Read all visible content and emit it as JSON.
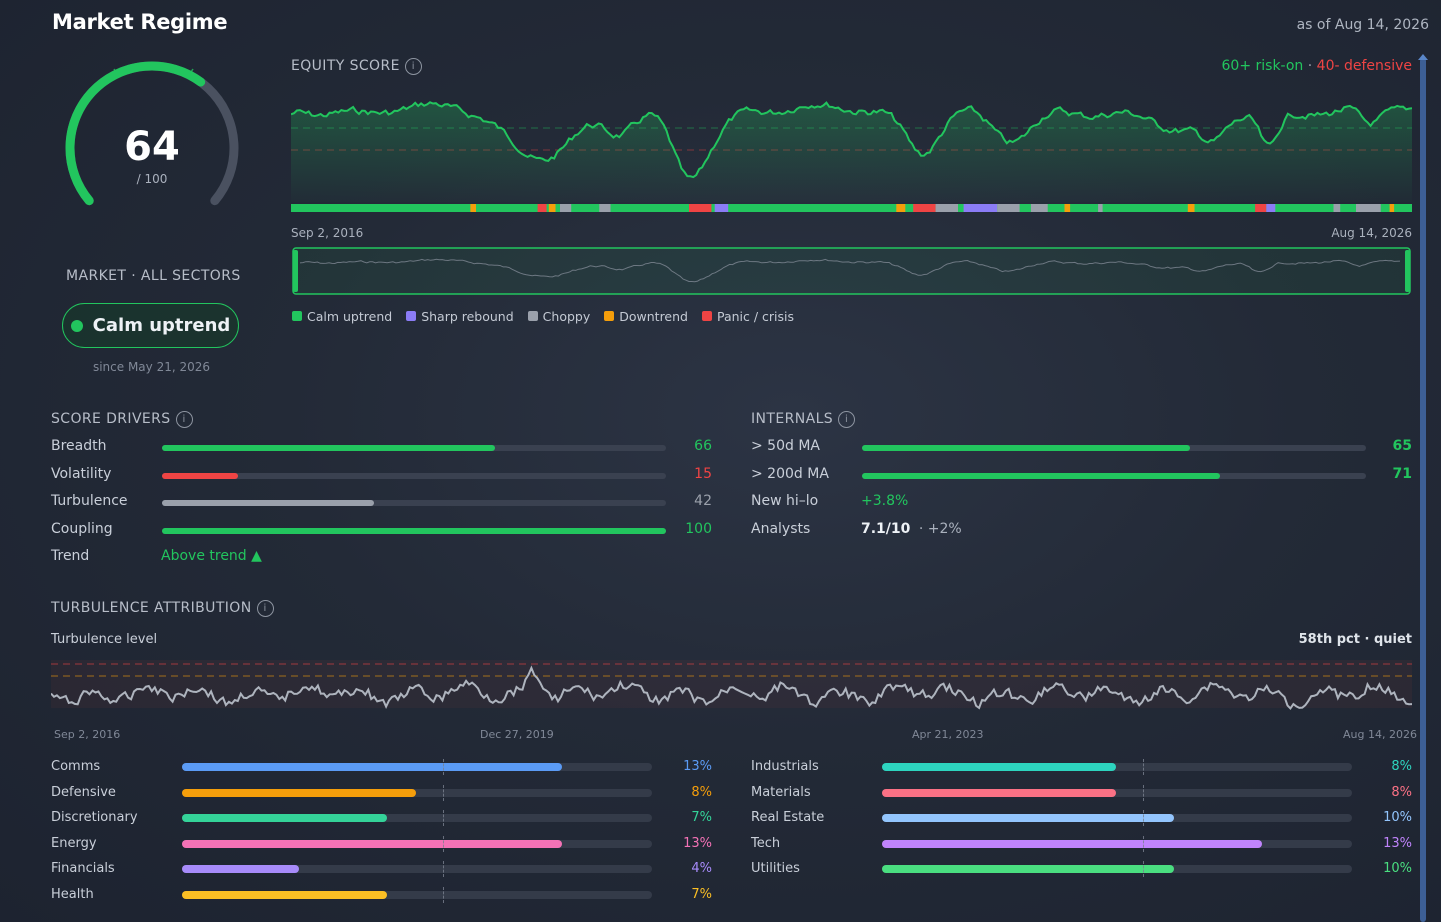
{
  "title": "Market Regime",
  "as_of": "as of Aug 14, 2026",
  "gauge": {
    "score": "64",
    "score_value": 64,
    "max": "/ 100"
  },
  "market": {
    "label": "MARKET · ALL SECTORS",
    "regime": "Calm uptrend",
    "since": "since May 21, 2026"
  },
  "equity_score": {
    "label": "EQUITY SCORE",
    "info_icon": "info-icon",
    "threshold_on": "60+ risk-on",
    "sep": " · ",
    "threshold_off": "40- defensive",
    "start_date": "Sep 2, 2016",
    "end_date": "Aug 14, 2026"
  },
  "legend": [
    {
      "label": "Calm uptrend",
      "color": "#22c55e"
    },
    {
      "label": "Sharp rebound",
      "color": "#8b7cf6"
    },
    {
      "label": "Choppy",
      "color": "#9aa0ab"
    },
    {
      "label": "Downtrend",
      "color": "#f59e0b"
    },
    {
      "label": "Panic / crisis",
      "color": "#ef4444"
    }
  ],
  "score_drivers": {
    "label": "SCORE DRIVERS",
    "rows": [
      {
        "label": "Breadth",
        "value": "66",
        "pct": 66,
        "color": "#22c55e"
      },
      {
        "label": "Volatility",
        "value": "15",
        "pct": 15,
        "color": "#ef4444"
      },
      {
        "label": "Turbulence",
        "value": "42",
        "pct": 42,
        "color": "#9aa0ab"
      },
      {
        "label": "Coupling",
        "value": "100",
        "pct": 100,
        "color": "#22c55e"
      }
    ],
    "trend_label": "Trend",
    "trend_value": "Above trend ▲"
  },
  "internals": {
    "label": "INTERNALS",
    "rows": [
      {
        "label": "> 50d MA",
        "value": "65",
        "pct": 65,
        "color": "#22c55e"
      },
      {
        "label": "> 200d MA",
        "value": "71",
        "pct": 71,
        "color": "#22c55e"
      }
    ],
    "hilo_label": "New hi–lo",
    "hilo_value": "+3.8%",
    "analysts_label": "Analysts",
    "analysts_value": "7.1/10",
    "analysts_change": "· +2%"
  },
  "turbulence": {
    "label": "TURBULENCE ATTRIBUTION",
    "level_label": "Turbulence level",
    "level_status": "58th pct · quiet",
    "dates": [
      "Sep 2, 2016",
      "Dec 27, 2019",
      "Apr 21, 2023",
      "Aug 14, 2026"
    ]
  },
  "attribution_left": [
    {
      "label": "Comms",
      "value": "13%",
      "pct": 13,
      "color": "#5b9bf5"
    },
    {
      "label": "Defensive",
      "value": "8%",
      "pct": 8,
      "color": "#f59e0b"
    },
    {
      "label": "Discretionary",
      "value": "7%",
      "pct": 7,
      "color": "#34d399"
    },
    {
      "label": "Energy",
      "value": "13%",
      "pct": 13,
      "color": "#f472b6"
    },
    {
      "label": "Financials",
      "value": "4%",
      "pct": 4,
      "color": "#a78bfa"
    },
    {
      "label": "Health",
      "value": "7%",
      "pct": 7,
      "color": "#fbbf24"
    }
  ],
  "attribution_right": [
    {
      "label": "Industrials",
      "value": "8%",
      "pct": 8,
      "color": "#2dd4bf"
    },
    {
      "label": "Materials",
      "value": "8%",
      "pct": 8,
      "color": "#fb7185"
    },
    {
      "label": "Real Estate",
      "value": "10%",
      "pct": 10,
      "color": "#93c5fd"
    },
    {
      "label": "Tech",
      "value": "13%",
      "pct": 13,
      "color": "#c084fc"
    },
    {
      "label": "Utilities",
      "value": "10%",
      "pct": 10,
      "color": "#4ade80"
    }
  ]
}
